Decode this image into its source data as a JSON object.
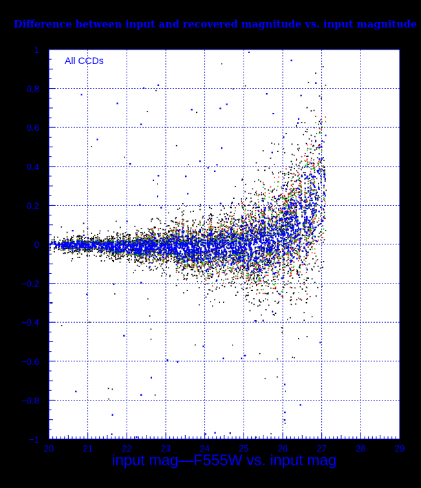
{
  "chart_data": {
    "type": "scatter",
    "title": "Difference between input and recovered magnitude vs. input magnitude",
    "xlabel": "input mag—F555W vs. input mag",
    "ylabel": "",
    "annotation": "All CCDs",
    "xlim": [
      20,
      29
    ],
    "ylim": [
      -1,
      1
    ],
    "grid": true,
    "x_ticks": [
      20,
      21,
      22,
      23,
      24,
      25,
      26,
      27,
      28,
      29
    ],
    "x_tick_labels": [
      "20",
      "21",
      "22",
      "23",
      "24",
      "25",
      "26",
      "27",
      "28",
      "29"
    ],
    "y_ticks": [
      -1,
      -0.8,
      -0.6,
      -0.4,
      -0.2,
      0,
      0.2,
      0.4,
      0.6,
      0.8,
      1
    ],
    "y_tick_labels": [
      "−1",
      "−0.8",
      "−0.6",
      "−0.4",
      "−0.2",
      "0",
      "0.2",
      "0.4",
      "0.6",
      "0.8",
      "1"
    ],
    "colors": {
      "background": "#000000",
      "frame": "#0000cc",
      "grid": "#0000cc",
      "text": "#0000ff",
      "plot_area": "#ffffff",
      "point_colors": [
        "#000000",
        "#ff0000",
        "#00c000",
        "#0000ff"
      ]
    },
    "series_profile": [
      {
        "x": 20.0,
        "y_center": 0.0,
        "y_spread": 0.04
      },
      {
        "x": 21.0,
        "y_center": 0.0,
        "y_spread": 0.06
      },
      {
        "x": 22.0,
        "y_center": -0.01,
        "y_spread": 0.09
      },
      {
        "x": 23.0,
        "y_center": -0.01,
        "y_spread": 0.14
      },
      {
        "x": 24.0,
        "y_center": -0.02,
        "y_spread": 0.2
      },
      {
        "x": 25.0,
        "y_center": -0.01,
        "y_spread": 0.3
      },
      {
        "x": 26.0,
        "y_center": 0.04,
        "y_spread": 0.45
      },
      {
        "x": 26.6,
        "y_center": 0.15,
        "y_spread": 0.55
      },
      {
        "x": 27.2,
        "y_center": 0.4,
        "y_spread": 0.55
      }
    ],
    "series_order": [
      "black",
      "red",
      "green",
      "blue"
    ]
  }
}
